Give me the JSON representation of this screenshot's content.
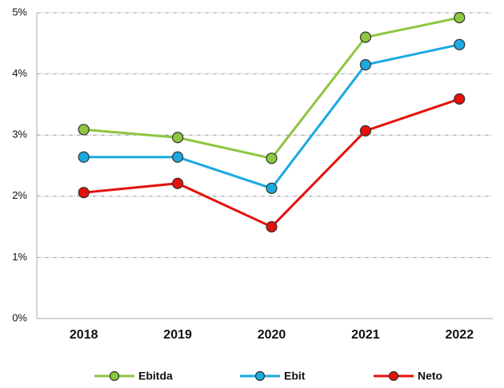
{
  "chart_data": {
    "type": "line",
    "categories": [
      "2018",
      "2019",
      "2020",
      "2021",
      "2022"
    ],
    "series": [
      {
        "name": "Ebitda",
        "color": "#8dc63f",
        "values": [
          3.09,
          2.96,
          2.62,
          4.6,
          4.92
        ]
      },
      {
        "name": "Ebit",
        "color": "#1ba9e1",
        "values": [
          2.64,
          2.64,
          2.13,
          4.15,
          4.48
        ]
      },
      {
        "name": "Neto",
        "color": "#e3120b",
        "values": [
          2.06,
          2.21,
          1.5,
          3.07,
          3.59
        ]
      }
    ],
    "ylim": [
      0,
      5
    ],
    "yticks": [
      {
        "value": 0,
        "label": "0%"
      },
      {
        "value": 1,
        "label": "1%"
      },
      {
        "value": 2,
        "label": "2%"
      },
      {
        "value": 3,
        "label": "3%"
      },
      {
        "value": 4,
        "label": "4%"
      },
      {
        "value": 5,
        "label": "5%"
      }
    ],
    "grid": true,
    "legend": "bottom"
  }
}
